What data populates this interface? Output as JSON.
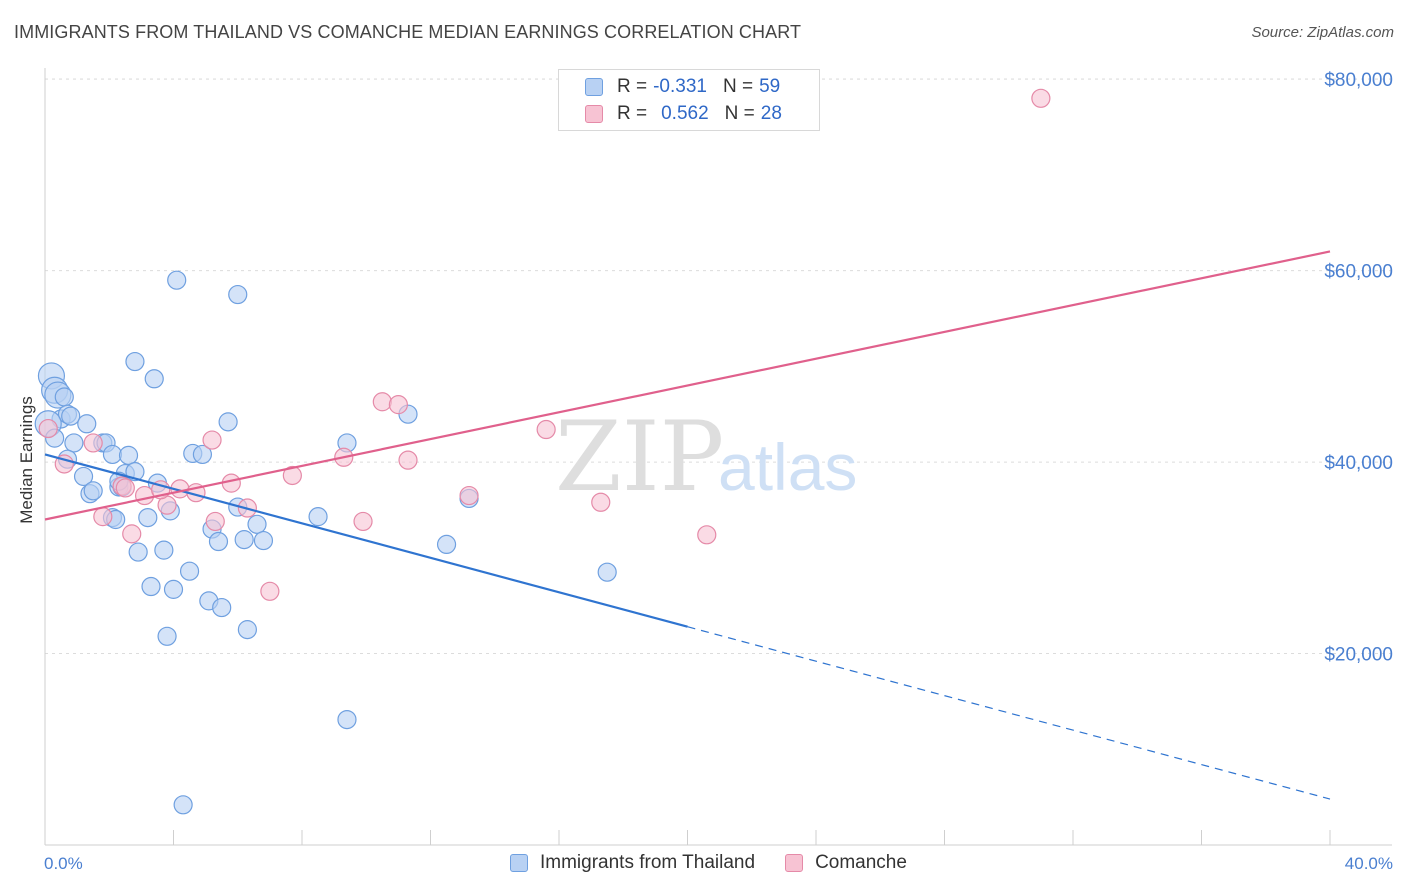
{
  "title": "IMMIGRANTS FROM THAILAND VS COMANCHE MEDIAN EARNINGS CORRELATION CHART",
  "source": "Source: ZipAtlas.com",
  "watermark": {
    "zip": "ZIP",
    "atlas": "atlas"
  },
  "legend": {
    "r_label": "R =",
    "n_label": "N =",
    "rows": [
      {
        "r": "-0.331",
        "n": "59"
      },
      {
        "r": "0.562",
        "n": "28"
      }
    ]
  },
  "chart_data": {
    "type": "scatter",
    "ylabel": "Median Earnings",
    "xlim": [
      0,
      40
    ],
    "ylim": [
      0,
      82000
    ],
    "x_tick_labels": [
      "0.0%",
      "40.0%"
    ],
    "y_ticks": [
      {
        "value": 20000,
        "label": "$20,000"
      },
      {
        "value": 40000,
        "label": "$40,000"
      },
      {
        "value": 60000,
        "label": "$60,000"
      },
      {
        "value": 80000,
        "label": "$80,000"
      }
    ],
    "grid": true,
    "series": [
      {
        "name": "Immigrants from Thailand",
        "color": "#6fa0e0",
        "fill": "#b8d1f3",
        "line_color": "#2f74d0",
        "trend": {
          "x0": 0,
          "y0": 40800,
          "x1": 20,
          "y1": 22800,
          "x_ext": 40,
          "y_ext": 4800
        },
        "points": [
          [
            0.2,
            49000
          ],
          [
            0.3,
            47500
          ],
          [
            0.4,
            47000
          ],
          [
            0.6,
            46800
          ],
          [
            0.5,
            44500
          ],
          [
            0.7,
            45000
          ],
          [
            0.8,
            44800
          ],
          [
            1.3,
            44000
          ],
          [
            0.9,
            42000
          ],
          [
            1.8,
            42000
          ],
          [
            1.9,
            42000
          ],
          [
            0.7,
            40300
          ],
          [
            1.2,
            38500
          ],
          [
            2.1,
            40800
          ],
          [
            2.6,
            40700
          ],
          [
            2.5,
            38800
          ],
          [
            2.8,
            39000
          ],
          [
            3.5,
            37800
          ],
          [
            1.4,
            36700
          ],
          [
            1.5,
            37000
          ],
          [
            2.3,
            37400
          ],
          [
            2.4,
            37400
          ],
          [
            4.6,
            40900
          ],
          [
            4.9,
            40800
          ],
          [
            5.7,
            44200
          ],
          [
            6.0,
            57500
          ],
          [
            4.1,
            59000
          ],
          [
            2.8,
            50500
          ],
          [
            3.4,
            48700
          ],
          [
            2.1,
            34200
          ],
          [
            2.2,
            34000
          ],
          [
            3.2,
            34200
          ],
          [
            3.9,
            34900
          ],
          [
            5.2,
            33000
          ],
          [
            6.0,
            35300
          ],
          [
            6.6,
            33500
          ],
          [
            8.5,
            34300
          ],
          [
            5.4,
            31700
          ],
          [
            6.2,
            31900
          ],
          [
            6.8,
            31800
          ],
          [
            2.9,
            30600
          ],
          [
            3.7,
            30800
          ],
          [
            3.3,
            27000
          ],
          [
            4.0,
            26700
          ],
          [
            4.5,
            28600
          ],
          [
            5.1,
            25500
          ],
          [
            5.5,
            24800
          ],
          [
            6.3,
            22500
          ],
          [
            3.8,
            21800
          ],
          [
            9.4,
            42000
          ],
          [
            11.3,
            45000
          ],
          [
            13.2,
            36200
          ],
          [
            12.5,
            31400
          ],
          [
            17.5,
            28500
          ],
          [
            9.4,
            13100
          ],
          [
            4.3,
            4200
          ],
          [
            0.1,
            44000
          ],
          [
            0.3,
            42500
          ],
          [
            2.3,
            38000
          ]
        ]
      },
      {
        "name": "Comanche",
        "color": "#e58aa8",
        "fill": "#f7c3d3",
        "line_color": "#e0608c",
        "trend": {
          "x0": 0,
          "y0": 34000,
          "x1": 40,
          "y1": 62000
        },
        "points": [
          [
            0.1,
            43500
          ],
          [
            0.6,
            39800
          ],
          [
            1.5,
            42000
          ],
          [
            2.4,
            37500
          ],
          [
            1.8,
            34300
          ],
          [
            3.1,
            36500
          ],
          [
            3.8,
            35500
          ],
          [
            4.2,
            37200
          ],
          [
            4.7,
            36800
          ],
          [
            5.2,
            42300
          ],
          [
            5.3,
            33800
          ],
          [
            5.8,
            37800
          ],
          [
            6.3,
            35200
          ],
          [
            7.7,
            38600
          ],
          [
            2.7,
            32500
          ],
          [
            3.6,
            37100
          ],
          [
            7.0,
            26500
          ],
          [
            9.3,
            40500
          ],
          [
            9.9,
            33800
          ],
          [
            10.5,
            46300
          ],
          [
            11.0,
            46000
          ],
          [
            11.3,
            40200
          ],
          [
            13.2,
            36500
          ],
          [
            15.6,
            43400
          ],
          [
            17.3,
            35800
          ],
          [
            20.6,
            32400
          ],
          [
            31.0,
            78000
          ],
          [
            2.5,
            37300
          ]
        ]
      }
    ]
  }
}
